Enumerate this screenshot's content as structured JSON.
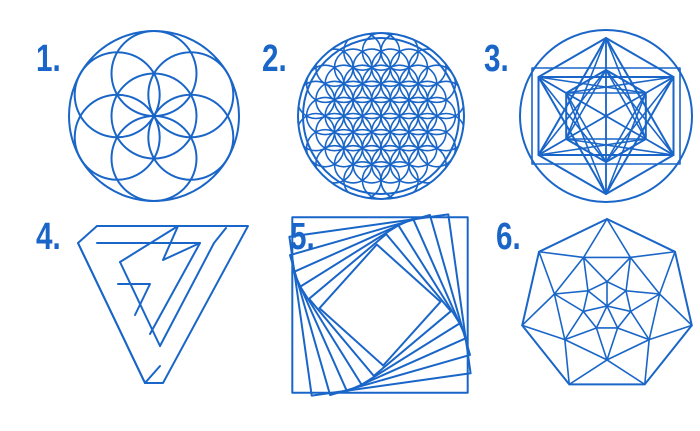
{
  "colors": {
    "line": "#1a66c8",
    "background": "#ffffff"
  },
  "figures": [
    {
      "id": "seed-of-life",
      "number": "1."
    },
    {
      "id": "flower-of-life",
      "number": "2."
    },
    {
      "id": "metatrons-cube",
      "number": "3."
    },
    {
      "id": "penrose-triangle",
      "number": "4."
    },
    {
      "id": "spiral-squares",
      "number": "5."
    },
    {
      "id": "geodesic-heptagon",
      "number": "6."
    }
  ]
}
